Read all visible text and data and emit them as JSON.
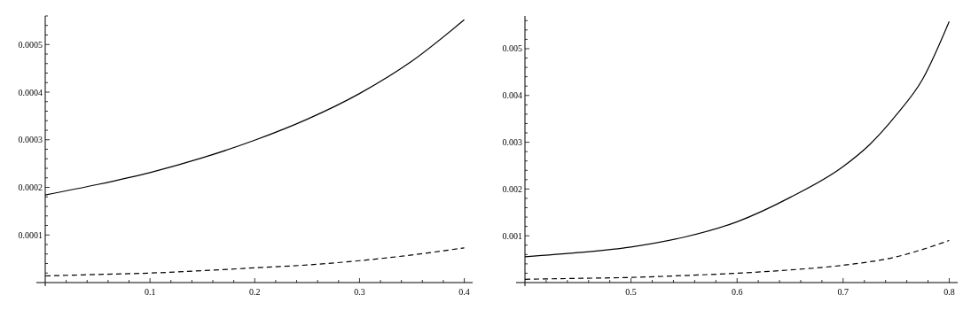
{
  "chart_data": [
    {
      "type": "line",
      "xlim": [
        0,
        0.408
      ],
      "ylim": [
        0,
        0.00056
      ],
      "xticks": [
        {
          "value": 0.02,
          "label": null
        },
        {
          "value": 0.04,
          "label": null
        },
        {
          "value": 0.06,
          "label": null
        },
        {
          "value": 0.08,
          "label": null
        },
        0.1,
        {
          "value": 0.12,
          "label": null
        },
        {
          "value": 0.14,
          "label": null
        },
        {
          "value": 0.16,
          "label": null
        },
        {
          "value": 0.18,
          "label": null
        },
        0.2,
        {
          "value": 0.22,
          "label": null
        },
        {
          "value": 0.24,
          "label": null
        },
        {
          "value": 0.26,
          "label": null
        },
        {
          "value": 0.28,
          "label": null
        },
        0.3,
        {
          "value": 0.32,
          "label": null
        },
        {
          "value": 0.34,
          "label": null
        },
        {
          "value": 0.36,
          "label": null
        },
        {
          "value": 0.38,
          "label": null
        },
        0.4
      ],
      "yticks": [
        {
          "value": 2e-05,
          "label": null
        },
        {
          "value": 4e-05,
          "label": null
        },
        {
          "value": 6e-05,
          "label": null
        },
        {
          "value": 8e-05,
          "label": null
        },
        0.0001,
        {
          "value": 0.00012,
          "label": null
        },
        {
          "value": 0.00014,
          "label": null
        },
        {
          "value": 0.00016,
          "label": null
        },
        {
          "value": 0.00018,
          "label": null
        },
        0.0002,
        {
          "value": 0.00022,
          "label": null
        },
        {
          "value": 0.00024,
          "label": null
        },
        {
          "value": 0.00026,
          "label": null
        },
        {
          "value": 0.00028,
          "label": null
        },
        0.0003,
        {
          "value": 0.00032,
          "label": null
        },
        {
          "value": 0.00034,
          "label": null
        },
        {
          "value": 0.00036,
          "label": null
        },
        {
          "value": 0.00038,
          "label": null
        },
        0.0004,
        {
          "value": 0.00042,
          "label": null
        },
        {
          "value": 0.00044,
          "label": null
        },
        {
          "value": 0.00046,
          "label": null
        },
        {
          "value": 0.00048,
          "label": null
        },
        0.0005,
        {
          "value": 0.00052,
          "label": null
        },
        {
          "value": 0.00054,
          "label": null
        },
        {
          "value": 0.00056,
          "label": null
        }
      ],
      "grid": false,
      "marker": "none",
      "series": [
        {
          "color": "#000000",
          "line_style": "solid",
          "x": [
            0,
            0.05,
            0.1,
            0.15,
            0.2,
            0.25,
            0.3,
            0.35,
            0.4
          ],
          "values": [
            0.000184,
            0.000206,
            0.000231,
            0.000262,
            0.000299,
            0.000343,
            0.000397,
            0.000465,
            0.000552
          ]
        },
        {
          "color": "#000000",
          "line_style": "dashed",
          "x": [
            0,
            0.05,
            0.1,
            0.15,
            0.2,
            0.25,
            0.3,
            0.35,
            0.4
          ],
          "values": [
            1.4e-05,
            1.7e-05,
            2e-05,
            2.5e-05,
            3.1e-05,
            3.7e-05,
            4.6e-05,
            5.8e-05,
            7.3e-05
          ]
        }
      ]
    },
    {
      "type": "line",
      "xlim": [
        0.4,
        0.808
      ],
      "ylim": [
        0,
        0.0057
      ],
      "xticks": [
        {
          "value": 0.42,
          "label": null
        },
        {
          "value": 0.44,
          "label": null
        },
        {
          "value": 0.46,
          "label": null
        },
        {
          "value": 0.48,
          "label": null
        },
        0.5,
        {
          "value": 0.52,
          "label": null
        },
        {
          "value": 0.54,
          "label": null
        },
        {
          "value": 0.56,
          "label": null
        },
        {
          "value": 0.58,
          "label": null
        },
        0.6,
        {
          "value": 0.62,
          "label": null
        },
        {
          "value": 0.64,
          "label": null
        },
        {
          "value": 0.66,
          "label": null
        },
        {
          "value": 0.68,
          "label": null
        },
        0.7,
        {
          "value": 0.72,
          "label": null
        },
        {
          "value": 0.74,
          "label": null
        },
        {
          "value": 0.76,
          "label": null
        },
        {
          "value": 0.78,
          "label": null
        },
        0.8
      ],
      "yticks": [
        {
          "value": 0.0002,
          "label": null
        },
        {
          "value": 0.0004,
          "label": null
        },
        {
          "value": 0.0006,
          "label": null
        },
        {
          "value": 0.0008,
          "label": null
        },
        0.001,
        {
          "value": 0.0012,
          "label": null
        },
        {
          "value": 0.0014,
          "label": null
        },
        {
          "value": 0.0016,
          "label": null
        },
        {
          "value": 0.0018,
          "label": null
        },
        0.002,
        {
          "value": 0.0022,
          "label": null
        },
        {
          "value": 0.0024,
          "label": null
        },
        {
          "value": 0.0026,
          "label": null
        },
        {
          "value": 0.0028,
          "label": null
        },
        0.003,
        {
          "value": 0.0032,
          "label": null
        },
        {
          "value": 0.0034,
          "label": null
        },
        {
          "value": 0.0036,
          "label": null
        },
        {
          "value": 0.0038,
          "label": null
        },
        0.004,
        {
          "value": 0.0042,
          "label": null
        },
        {
          "value": 0.0044,
          "label": null
        },
        {
          "value": 0.0046,
          "label": null
        },
        {
          "value": 0.0048,
          "label": null
        },
        0.005,
        {
          "value": 0.0052,
          "label": null
        },
        {
          "value": 0.0054,
          "label": null
        },
        {
          "value": 0.0056,
          "label": null
        }
      ],
      "grid": false,
      "marker": "none",
      "series": [
        {
          "color": "#000000",
          "line_style": "solid",
          "x": [
            0.4,
            0.45,
            0.5,
            0.55,
            0.6,
            0.65,
            0.7,
            0.725,
            0.75,
            0.775,
            0.8
          ],
          "values": [
            0.00055,
            0.00064,
            0.00076,
            0.00097,
            0.0013,
            0.00182,
            0.00248,
            0.00295,
            0.00358,
            0.00435,
            0.00558
          ]
        },
        {
          "color": "#000000",
          "line_style": "dashed",
          "x": [
            0.4,
            0.45,
            0.5,
            0.55,
            0.6,
            0.65,
            0.7,
            0.75,
            0.8
          ],
          "values": [
            7e-05,
            9e-05,
            0.00011,
            0.00015,
            0.0002,
            0.00027,
            0.00037,
            0.00055,
            0.0009
          ]
        }
      ]
    }
  ]
}
